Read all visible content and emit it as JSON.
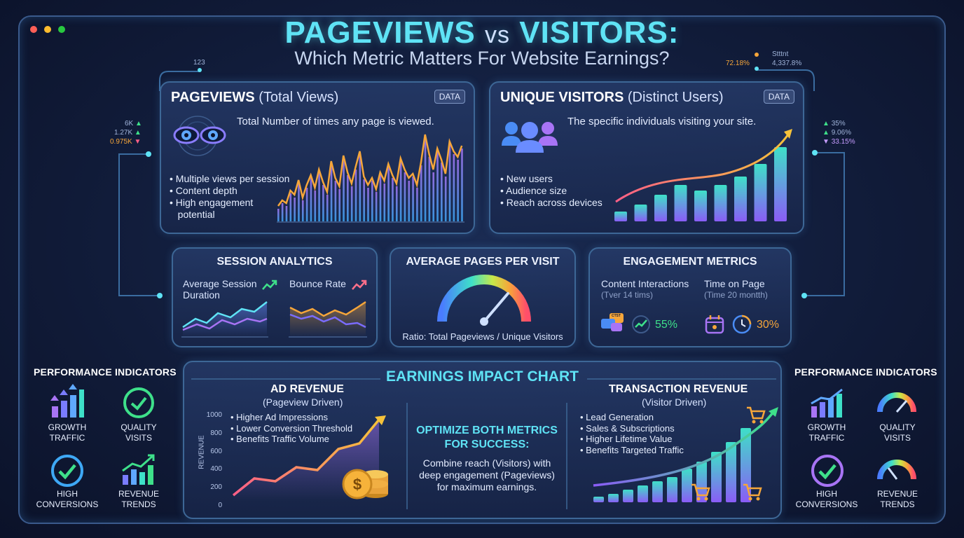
{
  "header": {
    "title_a": "PAGEVIEWS",
    "title_vs": "vs",
    "title_b": "VISITORS:",
    "subtitle": "Which Metric Matters For Website Earnings?"
  },
  "floating": {
    "top_left": "123",
    "top_right_a": "72.18%",
    "top_right_b": "Stttnt",
    "top_right_c": "4,337.8%",
    "left_stats": [
      "6K",
      "1.27K",
      "0.975K"
    ],
    "right_stats": [
      "35%",
      "9.06%",
      "33.15%"
    ]
  },
  "pageviews": {
    "title": "PAGEVIEWS",
    "subtitle": "(Total Views)",
    "badge": "DATA",
    "description": "Total Number of times any page is viewed.",
    "bullets": [
      "• Multiple views per session",
      "• Content depth",
      "• High engagement",
      "   potential"
    ]
  },
  "visitors": {
    "title": "UNIQUE VISITORS",
    "subtitle": "(Distinct Users)",
    "badge": "DATA",
    "description": "The specific individuals visiting your site.",
    "bullets": [
      "• New users",
      "• Audience size",
      "• Reach across devices"
    ]
  },
  "session": {
    "title": "SESSION ANALYTICS",
    "left_label": "Average Session Duration",
    "right_label": "Bounce Rate"
  },
  "pages_per_visit": {
    "title": "AVERAGE PAGES PER VISIT",
    "caption": "Ratio: Total Pageviews / Unique Visitors"
  },
  "engagement": {
    "title": "ENGAGEMENT METRICS",
    "col1_label": "Content Interactions",
    "col1_sub": "(Tver 14 tims)",
    "col1_value": "55%",
    "col1_icon_text": "CTST",
    "col2_label": "Time on Page",
    "col2_sub": "(Time 20 montth)",
    "col2_value": "30%"
  },
  "perf_left": {
    "title": "PERFORMANCE INDICATORS",
    "items": [
      "GROWTH\nTRAFFIC",
      "QUALITY\nVISITS",
      "HIGH\nCONVERSIONS",
      "REVENUE\nTRENDS"
    ]
  },
  "perf_right": {
    "title": "PERFORMANCE INDICATORS",
    "items": [
      "GROWTH\nTRAFFIC",
      "QUALITY\nVISITS",
      "HIGH\nCONVERSIONS",
      "REVENUE\nTRENDS"
    ]
  },
  "earnings": {
    "title": "EARNINGS IMPACT CHART",
    "ad_title": "AD REVENUE",
    "ad_sub": "(Pageview Driven)",
    "ad_bullets": [
      "• Higher Ad Impressions",
      "• Lower Conversion Threshold",
      "• Benefits Traffic Volume"
    ],
    "ad_ylabel": "REVENUE",
    "ad_yticks": [
      "1000",
      "800",
      "600",
      "400",
      "200",
      "0"
    ],
    "center_title": "OPTIMIZE BOTH METRICS FOR SUCCESS:",
    "center_text": "Combine reach (Visitors) with deep engagement (Pageviews) for maximum earnings.",
    "tx_title": "TRANSACTION REVENUE",
    "tx_sub": "(Visitor Driven)",
    "tx_bullets": [
      "• Lead Generation",
      "• Sales & Subscriptions",
      "• Higher Lifetime Value",
      "• Benefits Targeted Traffic"
    ]
  },
  "colors": {
    "accent": "#5fe3f5",
    "orange": "#f6a63a",
    "purple": "#8a5cf6",
    "green": "#3ee08a"
  }
}
